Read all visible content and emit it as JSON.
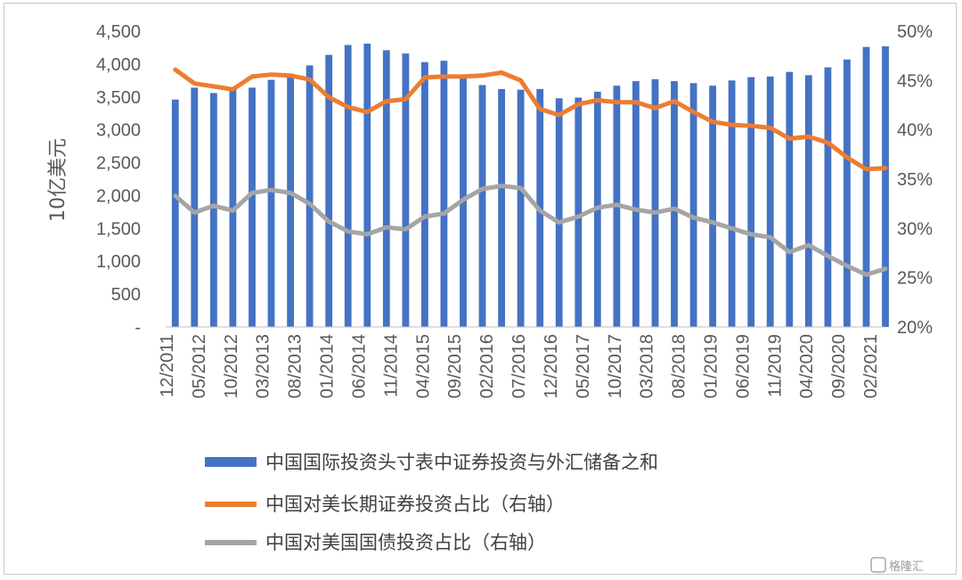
{
  "chart_data": {
    "type": "bar+line",
    "ylabel": "10亿美元",
    "y_left": {
      "min": 0,
      "max": 4500,
      "ticks": [
        "-",
        "500",
        "1,000",
        "1,500",
        "2,000",
        "2,500",
        "3,000",
        "3,500",
        "4,000",
        "4,500"
      ]
    },
    "y_right": {
      "min": 20,
      "max": 50,
      "ticks": [
        "20%",
        "25%",
        "30%",
        "35%",
        "40%",
        "45%",
        "50%"
      ]
    },
    "x_tick_labels": [
      "12/2011",
      "05/2012",
      "10/2012",
      "03/2013",
      "08/2013",
      "01/2014",
      "06/2014",
      "11/2014",
      "04/2015",
      "09/2015",
      "02/2016",
      "07/2016",
      "12/2016",
      "05/2017",
      "10/2017",
      "03/2018",
      "08/2018",
      "01/2019",
      "06/2019",
      "11/2019",
      "04/2020",
      "09/2020",
      "02/2021"
    ],
    "series": [
      {
        "name": "中国国际投资头寸表中证券投资与外汇储备之和",
        "type": "bar",
        "axis": "left",
        "color": "#4472c4",
        "values": [
          3460,
          3640,
          3560,
          3620,
          3640,
          3760,
          3800,
          3980,
          4140,
          4290,
          4310,
          4210,
          4160,
          4030,
          4050,
          3800,
          3680,
          3620,
          3610,
          3620,
          3480,
          3490,
          3580,
          3670,
          3740,
          3770,
          3740,
          3710,
          3670,
          3750,
          3800,
          3810,
          3880,
          3830,
          3950,
          4070,
          4260,
          4270
        ]
      },
      {
        "name": "中国对美长期证券投资占比（右轴）",
        "type": "line",
        "axis": "right",
        "color": "#ed7d31",
        "values": [
          46.1,
          44.7,
          44.4,
          44.1,
          45.4,
          45.6,
          45.5,
          45.1,
          43.3,
          42.3,
          41.8,
          42.9,
          43.1,
          45.3,
          45.4,
          45.4,
          45.5,
          45.8,
          45.0,
          42.1,
          41.5,
          42.6,
          43.0,
          42.8,
          42.8,
          42.2,
          42.9,
          41.8,
          40.8,
          40.5,
          40.4,
          40.2,
          39.1,
          39.3,
          38.7,
          37.2,
          36.0,
          36.1
        ]
      },
      {
        "name": "中国对美国国债投资占比（右轴）",
        "type": "line",
        "axis": "right",
        "color": "#a5a5a5",
        "values": [
          33.3,
          31.6,
          32.3,
          31.8,
          33.6,
          33.9,
          33.6,
          32.5,
          30.7,
          29.7,
          29.4,
          30.1,
          29.9,
          31.2,
          31.5,
          32.9,
          34.0,
          34.3,
          34.1,
          31.8,
          30.6,
          31.2,
          32.1,
          32.4,
          31.9,
          31.6,
          32.0,
          31.1,
          30.6,
          30.0,
          29.4,
          29.1,
          27.6,
          28.3,
          27.2,
          26.2,
          25.3,
          25.9
        ]
      }
    ],
    "legend_position": "bottom",
    "grid": false
  },
  "watermark": {
    "text": "格隆汇",
    "icon": "gelonghui-logo-icon"
  }
}
